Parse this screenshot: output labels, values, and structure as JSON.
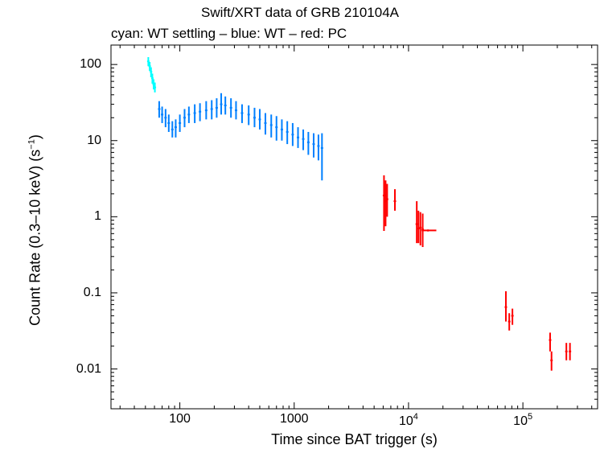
{
  "chart_data": {
    "type": "scatter",
    "title": "Swift/XRT data of GRB 210104A",
    "subtitle": "cyan: WT settling – blue: WT – red: PC",
    "xlabel": "Time since BAT trigger (s)",
    "ylabel_main": "Count Rate (0.3–10 keV) (s",
    "ylabel_exp": "−1",
    "ylabel_close": ")",
    "xscale": "log",
    "yscale": "log",
    "xlim": [
      25,
      450000
    ],
    "ylim": [
      0.003,
      180
    ],
    "xticks": [
      {
        "value": 100,
        "label": "100",
        "exp": ""
      },
      {
        "value": 1000,
        "label": "1000",
        "exp": ""
      },
      {
        "value": 10000,
        "label": "10",
        "exp": "4"
      },
      {
        "value": 100000,
        "label": "10",
        "exp": "5"
      }
    ],
    "yticks": [
      {
        "value": 100,
        "label": "100"
      },
      {
        "value": 10,
        "label": "10"
      },
      {
        "value": 1,
        "label": "1"
      },
      {
        "value": 0.1,
        "label": "0.1"
      },
      {
        "value": 0.01,
        "label": "0.01"
      }
    ],
    "series": [
      {
        "name": "WT settling",
        "color": "#00ffff",
        "points": [
          {
            "x": 53,
            "y": 110,
            "lo": 95,
            "hi": 125
          },
          {
            "x": 54.5,
            "y": 95,
            "lo": 82,
            "hi": 108
          },
          {
            "x": 56,
            "y": 80,
            "lo": 68,
            "hi": 92
          },
          {
            "x": 57.5,
            "y": 66,
            "lo": 56,
            "hi": 76
          },
          {
            "x": 59,
            "y": 55,
            "lo": 47,
            "hi": 64
          },
          {
            "x": 60.5,
            "y": 50,
            "lo": 43,
            "hi": 58
          }
        ]
      },
      {
        "name": "WT",
        "color": "#0080ff",
        "points": [
          {
            "x": 66,
            "y": 26,
            "lo": 20,
            "hi": 33
          },
          {
            "x": 70,
            "y": 22,
            "lo": 17,
            "hi": 28
          },
          {
            "x": 75,
            "y": 20,
            "lo": 15,
            "hi": 26
          },
          {
            "x": 80,
            "y": 17,
            "lo": 13,
            "hi": 22
          },
          {
            "x": 86,
            "y": 14,
            "lo": 11,
            "hi": 18
          },
          {
            "x": 92,
            "y": 15,
            "lo": 11,
            "hi": 19
          },
          {
            "x": 100,
            "y": 17,
            "lo": 13,
            "hi": 22
          },
          {
            "x": 110,
            "y": 20,
            "lo": 15,
            "hi": 26
          },
          {
            "x": 120,
            "y": 22,
            "lo": 17,
            "hi": 28
          },
          {
            "x": 135,
            "y": 23,
            "lo": 17,
            "hi": 30
          },
          {
            "x": 150,
            "y": 24,
            "lo": 18,
            "hi": 31
          },
          {
            "x": 170,
            "y": 25,
            "lo": 19,
            "hi": 33
          },
          {
            "x": 190,
            "y": 26,
            "lo": 19,
            "hi": 34
          },
          {
            "x": 210,
            "y": 27,
            "lo": 20,
            "hi": 36
          },
          {
            "x": 230,
            "y": 30,
            "lo": 22,
            "hi": 42
          },
          {
            "x": 250,
            "y": 29,
            "lo": 22,
            "hi": 38
          },
          {
            "x": 280,
            "y": 27,
            "lo": 20,
            "hi": 36
          },
          {
            "x": 310,
            "y": 25,
            "lo": 19,
            "hi": 33
          },
          {
            "x": 350,
            "y": 23,
            "lo": 17,
            "hi": 30
          },
          {
            "x": 400,
            "y": 22,
            "lo": 16,
            "hi": 29
          },
          {
            "x": 450,
            "y": 20,
            "lo": 15,
            "hi": 27
          },
          {
            "x": 500,
            "y": 19,
            "lo": 14,
            "hi": 26
          },
          {
            "x": 560,
            "y": 17,
            "lo": 12,
            "hi": 23
          },
          {
            "x": 630,
            "y": 16,
            "lo": 11,
            "hi": 22
          },
          {
            "x": 700,
            "y": 15,
            "lo": 10,
            "hi": 21
          },
          {
            "x": 780,
            "y": 14,
            "lo": 10,
            "hi": 19
          },
          {
            "x": 870,
            "y": 13,
            "lo": 9,
            "hi": 18
          },
          {
            "x": 970,
            "y": 12,
            "lo": 8.5,
            "hi": 17
          },
          {
            "x": 1080,
            "y": 11,
            "lo": 8,
            "hi": 15
          },
          {
            "x": 1200,
            "y": 10.5,
            "lo": 7.5,
            "hi": 14
          },
          {
            "x": 1330,
            "y": 9.5,
            "lo": 6.5,
            "hi": 13
          },
          {
            "x": 1480,
            "y": 9,
            "lo": 6,
            "hi": 12.5
          },
          {
            "x": 1630,
            "y": 8.5,
            "lo": 5.5,
            "hi": 12
          },
          {
            "x": 1750,
            "y": 8,
            "lo": 3,
            "hi": 12.5
          }
        ]
      },
      {
        "name": "PC",
        "color": "#ff0000",
        "points": [
          {
            "x": 6100,
            "y": 1.9,
            "lo": 0.65,
            "hi": 3.5
          },
          {
            "x": 6300,
            "y": 1.6,
            "lo": 0.75,
            "hi": 3.0
          },
          {
            "x": 6500,
            "y": 1.7,
            "lo": 1.0,
            "hi": 2.7
          },
          {
            "x": 7600,
            "y": 1.6,
            "lo": 1.2,
            "hi": 2.3
          },
          {
            "x": 11800,
            "y": 0.8,
            "lo": 0.45,
            "hi": 1.6
          },
          {
            "x": 12200,
            "y": 0.7,
            "lo": 0.45,
            "hi": 1.2
          },
          {
            "x": 12700,
            "y": 0.72,
            "lo": 0.42,
            "hi": 1.15
          },
          {
            "x": 13300,
            "y": 0.68,
            "lo": 0.4,
            "hi": 1.1
          },
          {
            "x": 14800,
            "y": 0.66,
            "lo": 0.64,
            "hi": 0.68,
            "xlo": 13000,
            "xhi": 17500
          },
          {
            "x": 71000,
            "y": 0.065,
            "lo": 0.042,
            "hi": 0.105
          },
          {
            "x": 76000,
            "y": 0.042,
            "lo": 0.032,
            "hi": 0.054
          },
          {
            "x": 81000,
            "y": 0.05,
            "lo": 0.038,
            "hi": 0.062
          },
          {
            "x": 173000,
            "y": 0.024,
            "lo": 0.017,
            "hi": 0.03
          },
          {
            "x": 178000,
            "y": 0.013,
            "lo": 0.0095,
            "hi": 0.017
          },
          {
            "x": 240000,
            "y": 0.017,
            "lo": 0.013,
            "hi": 0.022
          },
          {
            "x": 258000,
            "y": 0.017,
            "lo": 0.013,
            "hi": 0.022
          }
        ]
      }
    ]
  }
}
